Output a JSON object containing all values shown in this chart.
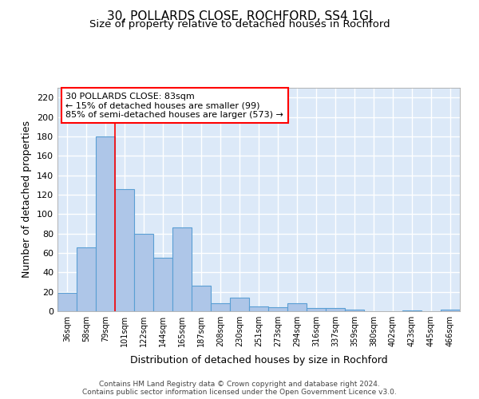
{
  "title": "30, POLLARDS CLOSE, ROCHFORD, SS4 1GJ",
  "subtitle": "Size of property relative to detached houses in Rochford",
  "xlabel": "Distribution of detached houses by size in Rochford",
  "ylabel": "Number of detached properties",
  "categories": [
    "36sqm",
    "58sqm",
    "79sqm",
    "101sqm",
    "122sqm",
    "144sqm",
    "165sqm",
    "187sqm",
    "208sqm",
    "230sqm",
    "251sqm",
    "273sqm",
    "294sqm",
    "316sqm",
    "337sqm",
    "359sqm",
    "380sqm",
    "402sqm",
    "423sqm",
    "445sqm",
    "466sqm"
  ],
  "values": [
    19,
    66,
    180,
    126,
    80,
    55,
    86,
    26,
    8,
    14,
    5,
    4,
    8,
    3,
    3,
    2,
    0,
    0,
    1,
    0,
    2
  ],
  "bar_color": "#aec6e8",
  "bar_edge_color": "#5a9fd4",
  "red_line_index": 2,
  "annotation_text": "30 POLLARDS CLOSE: 83sqm\n← 15% of detached houses are smaller (99)\n85% of semi-detached houses are larger (573) →",
  "annotation_box_color": "white",
  "annotation_box_edge_color": "red",
  "ylim": [
    0,
    230
  ],
  "yticks": [
    0,
    20,
    40,
    60,
    80,
    100,
    120,
    140,
    160,
    180,
    200,
    220
  ],
  "background_color": "#dce9f8",
  "grid_color": "white",
  "footer_line1": "Contains HM Land Registry data © Crown copyright and database right 2024.",
  "footer_line2": "Contains public sector information licensed under the Open Government Licence v3.0."
}
